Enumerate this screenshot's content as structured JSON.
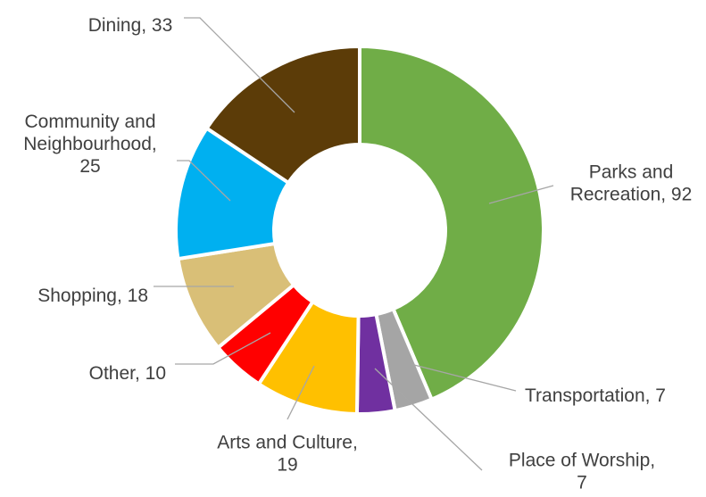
{
  "chart_data": {
    "type": "pie",
    "variant": "donut",
    "title": "",
    "legend": "none",
    "series": [
      {
        "values": [
          {
            "category": "Parks and Recreation",
            "value": 92,
            "color": "#70AD47",
            "label_lines": [
              "Parks and",
              "Recreation, 92"
            ]
          },
          {
            "category": "Transportation",
            "value": 7,
            "color": "#A5A5A5",
            "label_lines": [
              "Transportation, 7"
            ]
          },
          {
            "category": "Place of Worship",
            "value": 7,
            "color": "#7030A0",
            "label_lines": [
              "Place of Worship,",
              "7"
            ]
          },
          {
            "category": "Arts and Culture",
            "value": 19,
            "color": "#FFC000",
            "label_lines": [
              "Arts and Culture,",
              "19"
            ]
          },
          {
            "category": "Other",
            "value": 10,
            "color": "#FF0000",
            "label_lines": [
              "Other, 10"
            ]
          },
          {
            "category": "Shopping",
            "value": 18,
            "color": "#D9BF77",
            "label_lines": [
              "Shopping, 18"
            ]
          },
          {
            "category": "Community and Neighbourhood",
            "value": 25,
            "color": "#00B0F0",
            "label_lines": [
              "Community and",
              "Neighbourhood,",
              "25"
            ]
          },
          {
            "category": "Dining",
            "value": 33,
            "color": "#5C3C08",
            "label_lines": [
              "Dining, 33"
            ]
          }
        ]
      }
    ]
  }
}
